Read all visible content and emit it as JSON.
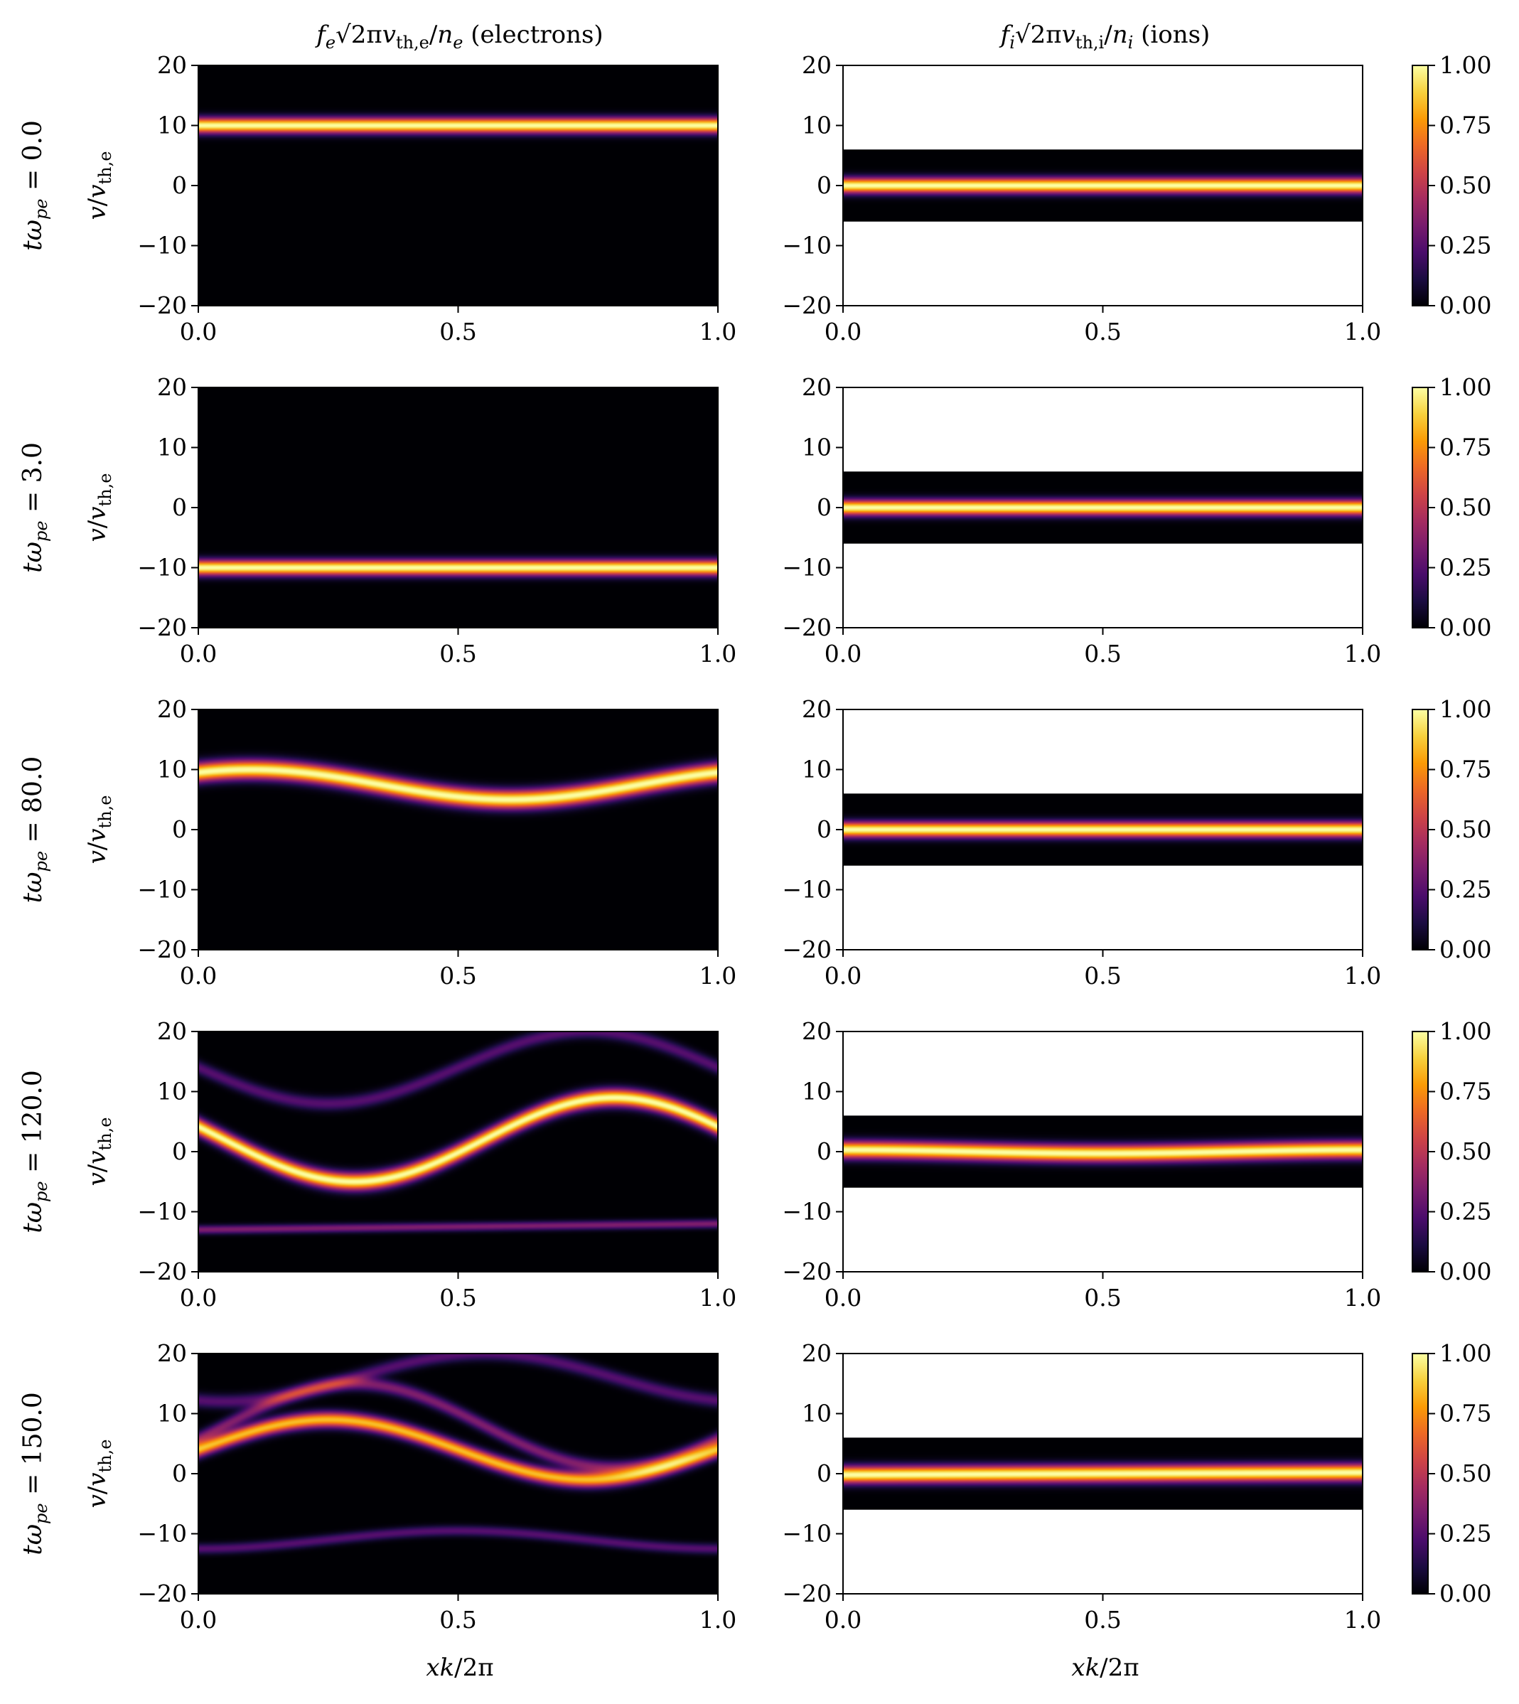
{
  "chart_data": {
    "type": "heatmap",
    "colormap": [
      "#000004",
      "#1b0c41",
      "#4a0c6b",
      "#781c6d",
      "#a52c60",
      "#cf4446",
      "#ed6925",
      "#fb9b06",
      "#f7d13d",
      "#fcffa4"
    ],
    "columns": [
      {
        "title_math": "f",
        "title_math_sub": "e",
        "title_tail_1": "√2π",
        "title_math_2": "v",
        "title_math_2_sub": "th,e",
        "title_tail_2": "/",
        "title_math_3": "n",
        "title_math_3_sub": "e",
        "title_text": " (electrons)"
      },
      {
        "title_math": "f",
        "title_math_sub": "i",
        "title_tail_1": "√2π",
        "title_math_2": "v",
        "title_math_2_sub": "th,i",
        "title_tail_2": "/",
        "title_math_3": "n",
        "title_math_3_sub": "i",
        "title_text": " (ions)"
      }
    ],
    "rows": [
      {
        "time_label": "tω",
        "time_sub": "pe",
        "time_value": " = 0.0"
      },
      {
        "time_label": "tω",
        "time_sub": "pe",
        "time_value": " = 3.0"
      },
      {
        "time_label": "tω",
        "time_sub": "pe",
        "time_value": " = 80.0"
      },
      {
        "time_label": "tω",
        "time_sub": "pe",
        "time_value": " = 120.0"
      },
      {
        "time_label": "tω",
        "time_sub": "pe",
        "time_value": " = 150.0"
      }
    ],
    "ylabel": {
      "main": "v",
      "slash": "/",
      "v2": "v",
      "sub": "th,e"
    },
    "xlabel": {
      "main": "xk",
      "tail": "/2π"
    },
    "xlim": [
      0,
      1
    ],
    "ylim": [
      -20,
      20
    ],
    "x_ticks": [
      "0.0",
      "0.5",
      "1.0"
    ],
    "x_tick_values": [
      0,
      0.5,
      1
    ],
    "y_ticks": [
      "20",
      "10",
      "0",
      "−10",
      "−20"
    ],
    "y_tick_values": [
      20,
      10,
      0,
      -10,
      -20
    ],
    "ion_domain_v": [
      -6,
      6
    ],
    "colorbar": {
      "range": [
        0,
        1
      ],
      "ticks": [
        "1.00",
        "0.75",
        "0.50",
        "0.25",
        "0.00"
      ],
      "tick_values": [
        1,
        0.75,
        0.5,
        0.25,
        0
      ]
    },
    "electron_beams": [
      [
        {
          "center": "10",
          "width": 0.9,
          "amp": 1
        }
      ],
      [
        {
          "center": "-10",
          "width": 0.9,
          "amp": 1
        }
      ],
      [
        {
          "center": "5 - 4.6*sin(2*pi*(x-0.18))*0 + 2.5 + 2.5*cos(2*pi*(x-0.1))",
          "width": 1.1,
          "amp": 1
        }
      ],
      [
        {
          "center": "2 + 7*sin(2*pi*(x-0.55))",
          "width": 1.0,
          "amp": 1
        },
        {
          "center": "14 + 6*sin(2*pi*(x-0.5))",
          "width": 0.8,
          "amp": 0.25
        },
        {
          "center": "-13 + 1*x",
          "width": 0.5,
          "amp": 0.35
        }
      ],
      [
        {
          "center": "4 + 5*sin(2*pi*(x-0.0))",
          "width": 0.9,
          "amp": 0.85
        },
        {
          "center": "8 + 7*sin(2*pi*(x-0.05))",
          "width": 0.8,
          "amp": 0.35
        },
        {
          "center": "-11 - 1.5*cos(2*pi*x)",
          "width": 0.6,
          "amp": 0.25
        },
        {
          "center": "16 + 4*sin(2*pi*(x-0.3))",
          "width": 0.8,
          "amp": 0.25
        }
      ]
    ],
    "ion_beams": [
      {
        "center": "0",
        "width": 0.9
      },
      {
        "center": "0",
        "width": 0.9
      },
      {
        "center": "0",
        "width": 0.9
      },
      {
        "center": "0.3*cos(2*pi*x)",
        "width": 1.0
      },
      {
        "center": "-0.2 + 0.4*x",
        "width": 1.0
      }
    ]
  }
}
